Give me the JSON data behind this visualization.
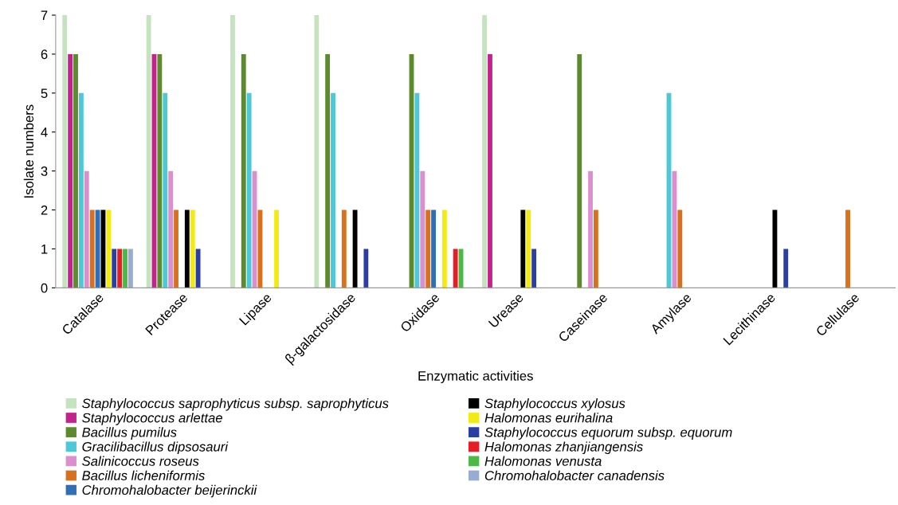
{
  "chart_data": {
    "type": "bar",
    "xlabel": "Enzymatic activities",
    "ylabel": "Isolate numbers",
    "categories": [
      "Catalase",
      "Protease",
      "Lipase",
      "β-galactosidase",
      "Oxidase",
      "Urease",
      "Caseinase",
      "Amylase",
      "Lecithinase",
      "Cellulase"
    ],
    "series": [
      {
        "name": "Staphylococcus saprophyticus subsp. saprophyticus",
        "color": "#c6e3c0",
        "values": [
          7,
          7,
          7,
          7,
          0,
          7,
          0,
          0,
          0,
          0
        ]
      },
      {
        "name": "Staphylococcus arlettae",
        "color": "#c4238e",
        "values": [
          6,
          6,
          0,
          0,
          0,
          6,
          0,
          0,
          0,
          0
        ]
      },
      {
        "name": "Bacillus pumilus",
        "color": "#5e8a2e",
        "values": [
          6,
          6,
          6,
          6,
          6,
          0,
          6,
          0,
          0,
          0
        ]
      },
      {
        "name": "Gracilibacillus dipsosauri",
        "color": "#4cc8d8",
        "values": [
          5,
          5,
          5,
          5,
          5,
          0,
          0,
          5,
          0,
          0
        ]
      },
      {
        "name": "Salinicoccus roseus",
        "color": "#dc8fce",
        "values": [
          3,
          3,
          3,
          0,
          3,
          0,
          3,
          3,
          0,
          0
        ]
      },
      {
        "name": "Bacillus licheniformis",
        "color": "#d9701e",
        "values": [
          2,
          2,
          2,
          2,
          2,
          0,
          2,
          2,
          0,
          2
        ]
      },
      {
        "name": "Chromohalobacter beijerinckii",
        "color": "#2e6fb8",
        "values": [
          2,
          0,
          0,
          0,
          2,
          0,
          0,
          0,
          0,
          0
        ]
      },
      {
        "name": "Staphylococcus xylosus",
        "color": "#000000",
        "values": [
          2,
          2,
          0,
          2,
          0,
          2,
          0,
          0,
          2,
          0
        ]
      },
      {
        "name": "Halomonas eurihalina",
        "color": "#f2ea12",
        "values": [
          2,
          2,
          2,
          0,
          2,
          2,
          0,
          0,
          0,
          0
        ]
      },
      {
        "name": "Staphylococcus equorum subsp. equorum",
        "color": "#2d3ea3",
        "values": [
          1,
          1,
          0,
          1,
          0,
          1,
          0,
          0,
          1,
          0
        ]
      },
      {
        "name": "Halomonas zhanjiangensis",
        "color": "#e81c24",
        "values": [
          1,
          0,
          0,
          0,
          1,
          0,
          0,
          0,
          0,
          0
        ]
      },
      {
        "name": "Halomonas venusta",
        "color": "#4cb848",
        "values": [
          1,
          0,
          0,
          0,
          1,
          0,
          0,
          0,
          0,
          0
        ]
      },
      {
        "name": "Chromohalobacter canadensis",
        "color": "#98acd0",
        "values": [
          1,
          0,
          0,
          0,
          0,
          0,
          0,
          0,
          0,
          0
        ]
      }
    ],
    "ylim": [
      0,
      7
    ],
    "yticks": [
      0,
      1,
      2,
      3,
      4,
      5,
      6,
      7
    ],
    "grid": false,
    "legend": "bottom"
  }
}
